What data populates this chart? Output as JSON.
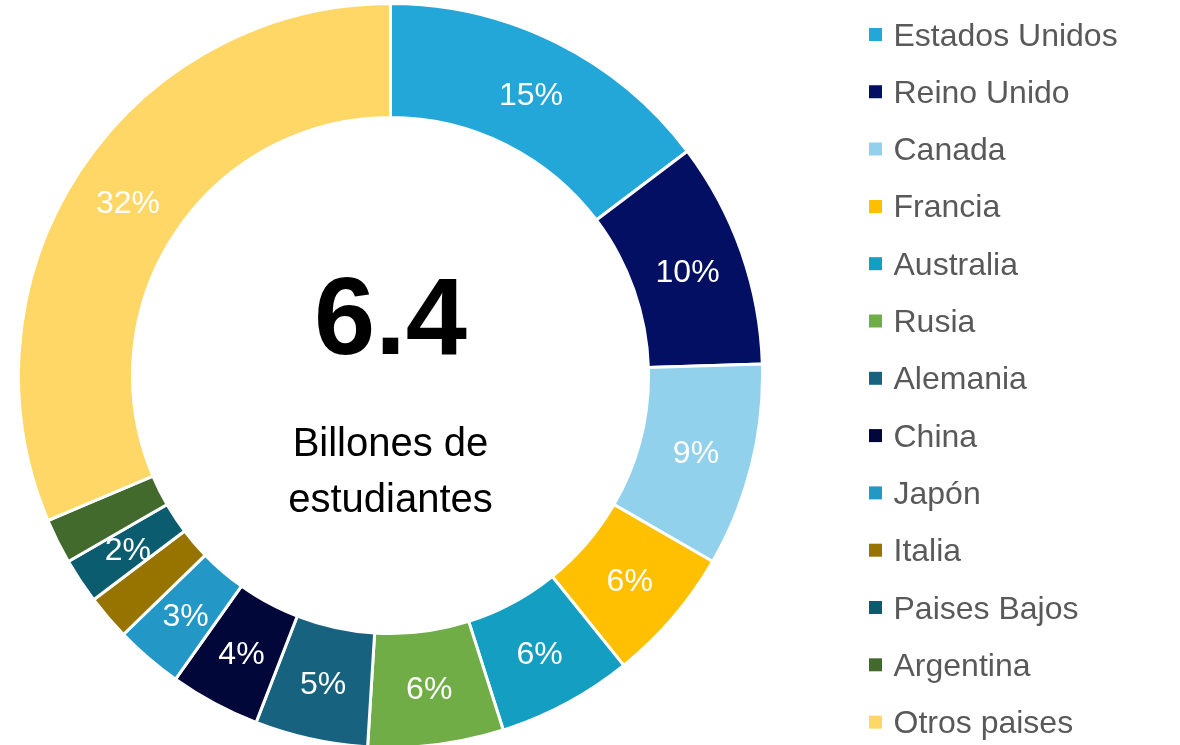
{
  "chart_data": {
    "type": "donut",
    "categories": [
      "Estados Unidos",
      "Reino Unido",
      "Canada",
      "Francia",
      "Australia",
      "Rusia",
      "Alemania",
      "China",
      "Japón",
      "Italia",
      "Paises Bajos",
      "Argentina",
      "Otros paises"
    ],
    "values": [
      15,
      10,
      9,
      6,
      6,
      6,
      5,
      4,
      3,
      2,
      2,
      2,
      32
    ],
    "colors": [
      "#23a6d8",
      "#020f63",
      "#92d1ec",
      "#fec000",
      "#139ec2",
      "#70ad47",
      "#17627f",
      "#010738",
      "#2397c5",
      "#977300",
      "#0c5c70",
      "#426a2d",
      "#fed766"
    ],
    "value_labels": [
      "15%",
      "10%",
      "9%",
      "6%",
      "6%",
      "6%",
      "5%",
      "4%",
      "3%",
      null,
      "2%",
      null,
      "32%"
    ],
    "annotations": [
      "6.4",
      "Billones de estudiantes"
    ],
    "legend": "right"
  }
}
